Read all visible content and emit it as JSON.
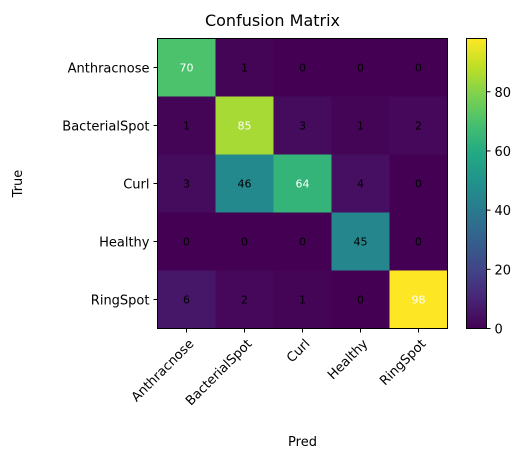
{
  "chart_data": {
    "type": "heatmap",
    "title": "Confusion Matrix",
    "xlabel": "Pred",
    "ylabel": "True",
    "x_categories": [
      "Anthracnose",
      "BacterialSpot",
      "Curl",
      "Healthy",
      "RingSpot"
    ],
    "y_categories": [
      "Anthracnose",
      "BacterialSpot",
      "Curl",
      "Healthy",
      "RingSpot"
    ],
    "matrix": [
      [
        70,
        1,
        0,
        0,
        0
      ],
      [
        1,
        85,
        3,
        1,
        2
      ],
      [
        3,
        46,
        64,
        4,
        0
      ],
      [
        0,
        0,
        0,
        45,
        0
      ],
      [
        6,
        2,
        1,
        0,
        98
      ]
    ],
    "colormap": "viridis",
    "value_range": [
      0,
      98
    ],
    "colorbar_ticks": [
      "0",
      "20",
      "40",
      "60",
      "80"
    ],
    "colorbar_tick_values": [
      0,
      20,
      40,
      60,
      80
    ],
    "text_color_light": "#ffffff",
    "text_color_dark": "#000000",
    "grid": false
  }
}
